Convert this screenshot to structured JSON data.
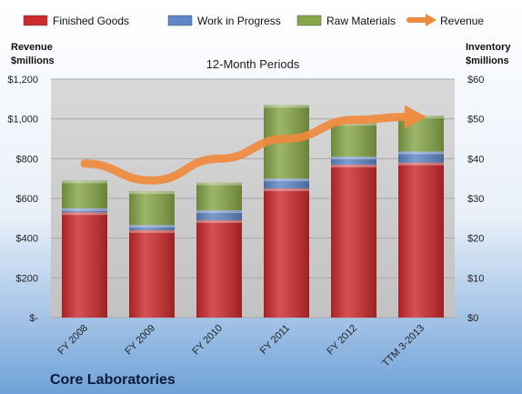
{
  "company": "Core Laboratories",
  "colors": {
    "finished_goods": "#cc2a2c",
    "work_in_progress": "#5f86c6",
    "raw_materials": "#86a648",
    "revenue": "#ef8a3d",
    "background_top": "#ffffff",
    "background_bottom": "#6fa2d8"
  },
  "chart_data": {
    "type": "bar",
    "stacked": true,
    "title": "12-Month Periods",
    "categories": [
      "FY 2008",
      "FY 2009",
      "FY 2010",
      "FY 2011",
      "FY 2012",
      "TTM 3-2013"
    ],
    "series": [
      {
        "name": "Finished Goods",
        "axis": "right",
        "values": [
          26.5,
          22.0,
          24.5,
          32.5,
          38.5,
          39.0
        ]
      },
      {
        "name": "Work in Progress",
        "axis": "right",
        "values": [
          1.0,
          1.3,
          2.5,
          2.5,
          2.0,
          2.8
        ]
      },
      {
        "name": "Raw Materials",
        "axis": "right",
        "values": [
          7.0,
          8.5,
          7.0,
          18.5,
          8.5,
          9.0
        ]
      },
      {
        "name": "Revenue",
        "type": "line",
        "axis": "left",
        "values": [
          775,
          690,
          800,
          900,
          995,
          1010
        ]
      }
    ],
    "left_axis": {
      "label_line1": "Revenue",
      "label_line2": "$millions",
      "range": [
        0,
        1200
      ],
      "ticks": [
        "$-",
        "$200",
        "$400",
        "$600",
        "$800",
        "$1,000",
        "$1,200"
      ]
    },
    "right_axis": {
      "label_line1": "Inventory",
      "label_line2": "$millions",
      "range": [
        0,
        60
      ],
      "ticks": [
        "$0",
        "$10",
        "$20",
        "$30",
        "$40",
        "$50",
        "$60"
      ]
    },
    "legend_position": "top",
    "grid": true
  }
}
